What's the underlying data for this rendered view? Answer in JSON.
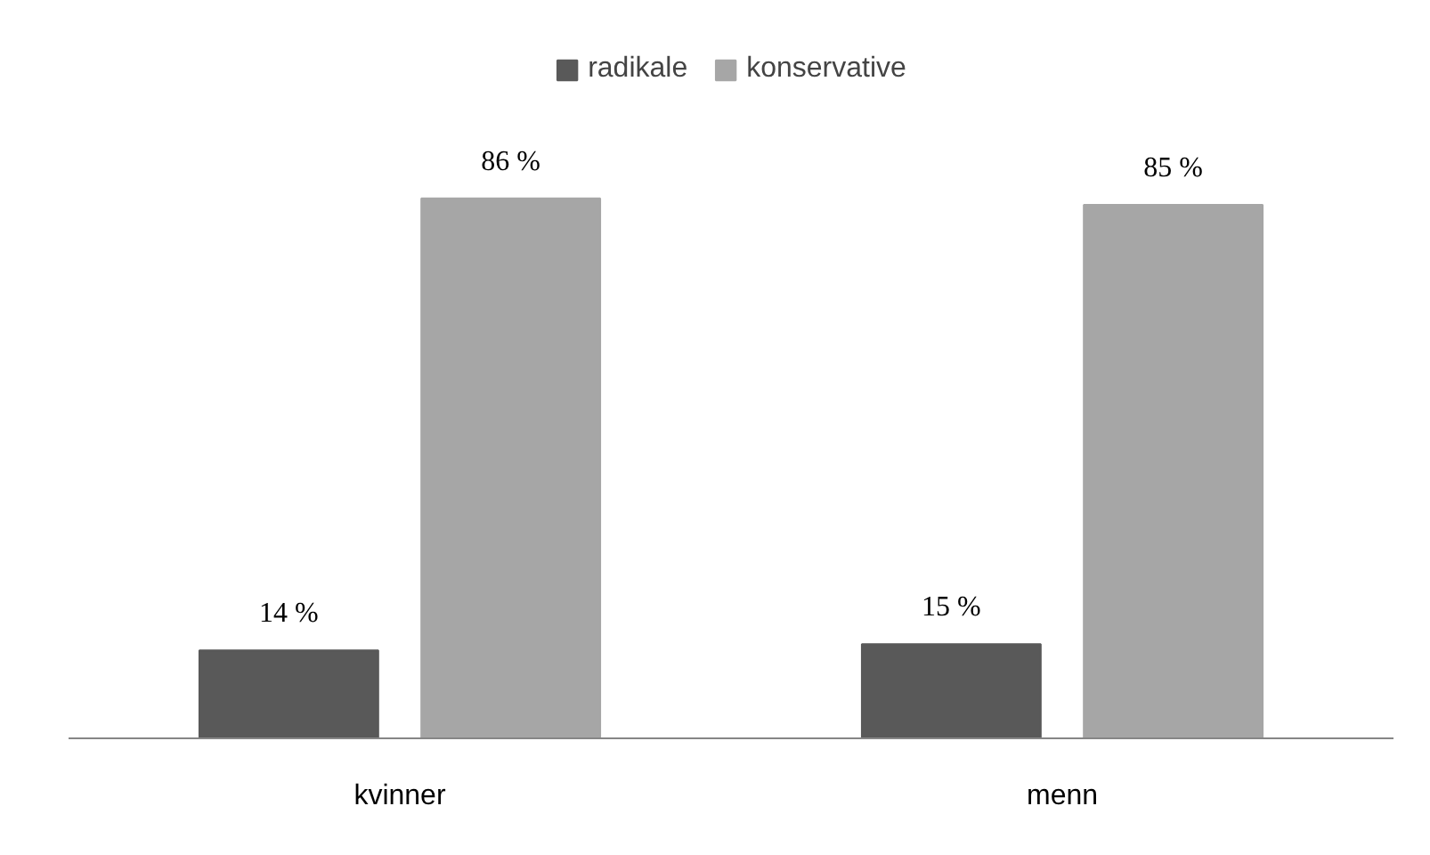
{
  "chart_data": {
    "type": "bar",
    "categories": [
      "kvinner",
      "menn"
    ],
    "series": [
      {
        "name": "radikale",
        "color": "#595959",
        "values": [
          14,
          15
        ],
        "value_labels": [
          "14 %",
          "15 %"
        ]
      },
      {
        "name": "konservative",
        "color": "#a6a6a6",
        "values": [
          86,
          85
        ],
        "value_labels": [
          "86 %",
          "85 %"
        ]
      }
    ],
    "legend": "top",
    "tick_labels": "x"
  }
}
